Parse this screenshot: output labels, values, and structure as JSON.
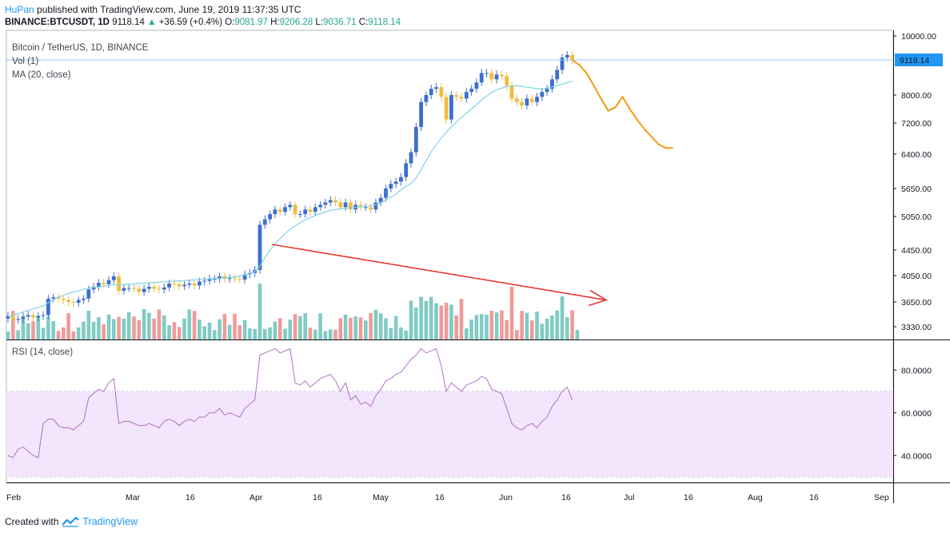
{
  "header": {
    "author": "HuPan",
    "published_text": "published with TradingView.com, June 19, 2019 11:37:35 UTC",
    "symbol": "BINANCE:BTCUSDT, 1D",
    "last": "9118.14",
    "change": "+36.59 (+0.4%)",
    "open_label": "O:",
    "open": "9081.97",
    "high_label": "H:",
    "high": "9206.28",
    "low_label": "L:",
    "low": "9036.71",
    "close_label": "C:",
    "close": "9118.14"
  },
  "legend": {
    "title": "Bitcoin / TetherUS, 1D, BINANCE",
    "vol": "Vol (1)",
    "ma": "MA (20, close)",
    "rsi": "RSI (14, close)"
  },
  "footer": {
    "created_with": "Created with",
    "brand": "TradingView"
  },
  "colors": {
    "candle_up": "#3d6fcf",
    "candle_down": "#f2bd3c",
    "volume_up": "#80cbc4",
    "volume_down": "#ef9a9a",
    "ma": "#7fd3e6",
    "rsi": "#b06fc4",
    "rsi_band": "#f3e5fb",
    "projection": "#f39c12",
    "trend_arrow": "#e53935",
    "price_tag": "#2196f3"
  },
  "chart_data": {
    "type": "candlestick",
    "y_axis_labels": [
      "10000.00",
      "9118.14",
      "8000.00",
      "7200.00",
      "6400.00",
      "5650.00",
      "5050.00",
      "4450.00",
      "4050.00",
      "3650.00",
      "3330.00"
    ],
    "rsi_axis_labels": [
      "80.0000",
      "60.0000",
      "40.0000"
    ],
    "x_axis_labels": [
      "Feb",
      "Mar",
      "16",
      "Apr",
      "16",
      "May",
      "16",
      "Jun",
      "16",
      "Jul",
      "16",
      "Aug",
      "16",
      "Sep"
    ],
    "last_price": 9118.14,
    "rsi_band": [
      30,
      70
    ],
    "candles_close": [
      3470,
      3420,
      3430,
      3460,
      3480,
      3450,
      3470,
      3480,
      3700,
      3720,
      3700,
      3680,
      3650,
      3640,
      3680,
      3700,
      3840,
      3880,
      3940,
      3920,
      3980,
      4040,
      3820,
      3860,
      3860,
      3850,
      3800,
      3850,
      3880,
      3850,
      3840,
      3870,
      3930,
      3920,
      3890,
      3910,
      3930,
      3900,
      3960,
      3970,
      4000,
      4000,
      4040,
      4000,
      4010,
      4000,
      3990,
      4070,
      4090,
      4140,
      4900,
      5000,
      5100,
      5200,
      5150,
      5250,
      5300,
      5100,
      5100,
      5200,
      5150,
      5250,
      5300,
      5350,
      5400,
      5350,
      5250,
      5350,
      5200,
      5300,
      5250,
      5250,
      5200,
      5350,
      5450,
      5650,
      5750,
      5800,
      5900,
      6200,
      6450,
      7100,
      7800,
      8000,
      8200,
      8250,
      7950,
      7300,
      8000,
      7950,
      7900,
      8100,
      8200,
      8400,
      8700,
      8700,
      8500,
      8650,
      8600,
      8300,
      7900,
      7800,
      7700,
      7900,
      7800,
      7950,
      8100,
      8200,
      8500,
      8800,
      9200,
      9300,
      9118
    ],
    "ma20": [
      3460,
      3480,
      3500,
      3520,
      3540,
      3560,
      3580,
      3600,
      3640,
      3680,
      3720,
      3750,
      3780,
      3800,
      3820,
      3840,
      3860,
      3870,
      3880,
      3890,
      3900,
      3910,
      3910,
      3915,
      3920,
      3925,
      3930,
      3935,
      3940,
      3945,
      3950,
      3955,
      3960,
      3965,
      3970,
      3975,
      3980,
      3985,
      3990,
      3995,
      4000,
      4005,
      4010,
      4015,
      4020,
      4030,
      4040,
      4060,
      4080,
      4110,
      4200,
      4330,
      4450,
      4560,
      4650,
      4740,
      4820,
      4880,
      4940,
      4990,
      5030,
      5070,
      5110,
      5150,
      5180,
      5200,
      5215,
      5225,
      5235,
      5245,
      5255,
      5265,
      5280,
      5300,
      5340,
      5400,
      5470,
      5530,
      5620,
      5700,
      5760,
      5880,
      6060,
      6260,
      6460,
      6640,
      6820,
      6960,
      7100,
      7230,
      7360,
      7480,
      7600,
      7730,
      7860,
      7970,
      8080,
      8170,
      8220,
      8270,
      8300,
      8290,
      8280,
      8250,
      8230,
      8200,
      8200,
      8220,
      8260,
      8300,
      8350,
      8400,
      8440
    ],
    "rsi": [
      40,
      39,
      43,
      44,
      42,
      40,
      39,
      55,
      57,
      57,
      54,
      53,
      53,
      52,
      54,
      56,
      67,
      69,
      71,
      70,
      74,
      76,
      55,
      56,
      56,
      55,
      54,
      54,
      55,
      54,
      53,
      56,
      57,
      56,
      54,
      56,
      57,
      56,
      58,
      58,
      60,
      60,
      62,
      59,
      60,
      59,
      58,
      62,
      64,
      66,
      87,
      88,
      89,
      90,
      88,
      89,
      90,
      74,
      73,
      75,
      72,
      74,
      76,
      77,
      78,
      75,
      70,
      74,
      66,
      68,
      64,
      65,
      63,
      68,
      71,
      75,
      76,
      78,
      79,
      82,
      85,
      87,
      90,
      88,
      89,
      90,
      82,
      70,
      74,
      72,
      70,
      73,
      74,
      75,
      77,
      76,
      71,
      70,
      69,
      62,
      55,
      53,
      52,
      54,
      55,
      53,
      56,
      58,
      63,
      66,
      70,
      72,
      66
    ],
    "projection": [
      9118,
      8950,
      8700,
      8300,
      7900,
      7550,
      7650,
      7950,
      7600,
      7300,
      7050,
      6850,
      6650,
      6560,
      6560
    ],
    "trend_arrow": {
      "from": [
        4550,
        "Apr 02"
      ],
      "to": [
        3680,
        "Jun 22"
      ]
    }
  }
}
